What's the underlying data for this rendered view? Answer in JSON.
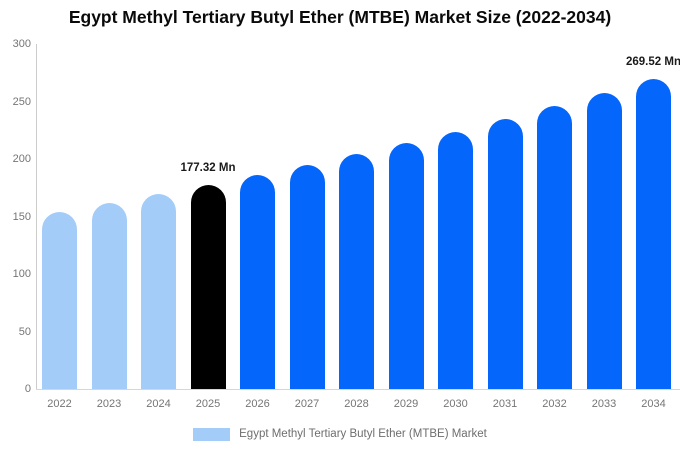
{
  "title": "Egypt Methyl Tertiary Butyl Ether (MTBE) Market Size (2022-2034)",
  "unit": "Mn",
  "chart_data": {
    "type": "bar",
    "title": "Egypt Methyl Tertiary Butyl Ether (MTBE) Market Size (2022-2034)",
    "xlabel": "",
    "ylabel": "",
    "ylim": [
      0,
      300
    ],
    "yticks": [
      0,
      50,
      100,
      150,
      200,
      250,
      300
    ],
    "grid": false,
    "categories": [
      "2022",
      "2023",
      "2024",
      "2025",
      "2026",
      "2027",
      "2028",
      "2029",
      "2030",
      "2031",
      "2032",
      "2033",
      "2034"
    ],
    "values": [
      154.1,
      161.5,
      169.2,
      177.32,
      185.8,
      194.7,
      204.0,
      213.7,
      223.9,
      234.6,
      245.8,
      257.5,
      269.52
    ],
    "bar_colors": [
      "#a3ccf8",
      "#a3ccf8",
      "#a3ccf8",
      "#000000",
      "#0566fb",
      "#0566fb",
      "#0566fb",
      "#0566fb",
      "#0566fb",
      "#0566fb",
      "#0566fb",
      "#0566fb",
      "#0566fb"
    ],
    "data_labels": [
      null,
      null,
      null,
      "177.32 Mn",
      null,
      null,
      null,
      null,
      null,
      null,
      null,
      null,
      "269.52 Mn"
    ],
    "colors": {
      "historical": "#a3ccf8",
      "base_year": "#000000",
      "forecast": "#0566fb",
      "axis_text": "#757575",
      "axis_line": "#cccccc",
      "value_label": "#1a1a1a"
    },
    "legend": {
      "position": "bottom",
      "items": [
        {
          "label": "Egypt Methyl Tertiary Butyl Ether (MTBE) Market",
          "color": "#a3ccf8"
        }
      ]
    }
  }
}
